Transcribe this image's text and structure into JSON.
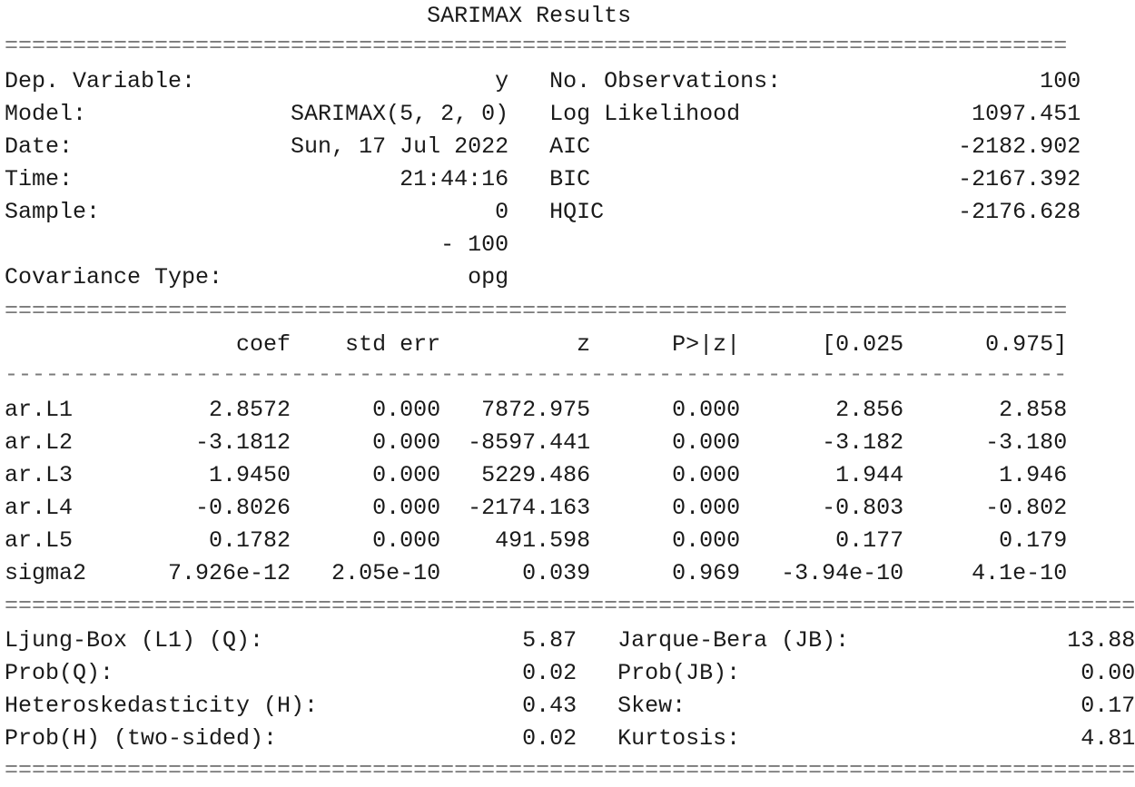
{
  "title": "SARIMAX Results",
  "separators": {
    "eq78": "==============================================================================",
    "dash78": "------------------------------------------------------------------------------",
    "eq83": "==================================================================================="
  },
  "summary": {
    "left": [
      {
        "label": "Dep. Variable:",
        "value": "y"
      },
      {
        "label": "Model:",
        "value": "SARIMAX(5, 2, 0)"
      },
      {
        "label": "Date:",
        "value": "Sun, 17 Jul 2022"
      },
      {
        "label": "Time:",
        "value": "21:44:16"
      },
      {
        "label": "Sample:",
        "value": "0"
      },
      {
        "label": "",
        "value": "- 100"
      },
      {
        "label": "Covariance Type:",
        "value": "opg"
      }
    ],
    "right": [
      {
        "label": "No. Observations:",
        "value": "100"
      },
      {
        "label": "Log Likelihood",
        "value": "1097.451"
      },
      {
        "label": "AIC",
        "value": "-2182.902"
      },
      {
        "label": "BIC",
        "value": "-2167.392"
      },
      {
        "label": "HQIC",
        "value": "-2176.628"
      }
    ]
  },
  "coef_table": {
    "columns": [
      "",
      "coef",
      "std err",
      "z",
      "P>|z|",
      "[0.025",
      "0.975]"
    ],
    "rows": [
      [
        "ar.L1",
        "2.8572",
        "0.000",
        "7872.975",
        "0.000",
        "2.856",
        "2.858"
      ],
      [
        "ar.L2",
        "-3.1812",
        "0.000",
        "-8597.441",
        "0.000",
        "-3.182",
        "-3.180"
      ],
      [
        "ar.L3",
        "1.9450",
        "0.000",
        "5229.486",
        "0.000",
        "1.944",
        "1.946"
      ],
      [
        "ar.L4",
        "-0.8026",
        "0.000",
        "-2174.163",
        "0.000",
        "-0.803",
        "-0.802"
      ],
      [
        "ar.L5",
        "0.1782",
        "0.000",
        "491.598",
        "0.000",
        "0.177",
        "0.179"
      ],
      [
        "sigma2",
        "7.926e-12",
        "2.05e-10",
        "0.039",
        "0.969",
        "-3.94e-10",
        "4.1e-10"
      ]
    ]
  },
  "diagnostics": {
    "left": [
      {
        "label": "Ljung-Box (L1) (Q):",
        "value": "5.87"
      },
      {
        "label": "Prob(Q):",
        "value": "0.02"
      },
      {
        "label": "Heteroskedasticity (H):",
        "value": "0.43"
      },
      {
        "label": "Prob(H) (two-sided):",
        "value": "0.02"
      }
    ],
    "right": [
      {
        "label": "Jarque-Bera (JB):",
        "value": "13.88"
      },
      {
        "label": "Prob(JB):",
        "value": "0.00"
      },
      {
        "label": "Skew:",
        "value": "0.17"
      },
      {
        "label": "Kurtosis:",
        "value": "4.81"
      }
    ]
  }
}
